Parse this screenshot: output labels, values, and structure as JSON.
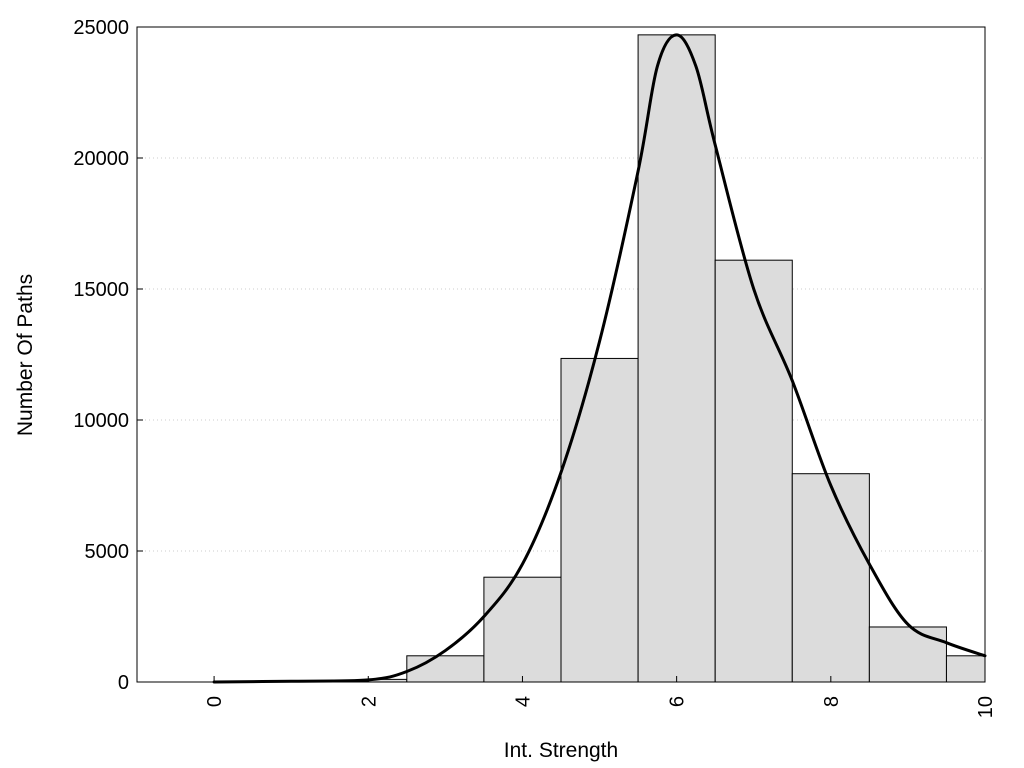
{
  "chart_data": {
    "type": "bar",
    "subtype": "histogram-with-density-curve",
    "title": "",
    "xlabel": "Int. Strength",
    "ylabel": "Number Of Paths",
    "xlim": [
      -1,
      10
    ],
    "ylim": [
      0,
      25000
    ],
    "xticks": [
      0,
      2,
      4,
      6,
      8,
      10
    ],
    "xtick_labels": [
      "0",
      "2",
      "4",
      "6",
      "8",
      "10"
    ],
    "xtick_label_rotation": "vertical",
    "yticks": [
      0,
      5000,
      10000,
      15000,
      20000,
      25000
    ],
    "ytick_labels": [
      "0",
      "5000",
      "10000",
      "15000",
      "20000",
      "25000"
    ],
    "grid": "horizontal dotted",
    "legend": "none",
    "bars": [
      {
        "x0": 0,
        "x1": 1,
        "value": 20
      },
      {
        "x0": 1,
        "x1": 2,
        "value": 40
      },
      {
        "x0": 2,
        "x1": 2.5,
        "value": 100
      },
      {
        "x0": 2.5,
        "x1": 3.5,
        "value": 1000
      },
      {
        "x0": 3.5,
        "x1": 4.5,
        "value": 4000
      },
      {
        "x0": 4.5,
        "x1": 5.5,
        "value": 12350
      },
      {
        "x0": 5.5,
        "x1": 6.5,
        "value": 24700
      },
      {
        "x0": 6.5,
        "x1": 7.5,
        "value": 16100
      },
      {
        "x0": 7.5,
        "x1": 8.5,
        "value": 7950
      },
      {
        "x0": 8.5,
        "x1": 9.5,
        "value": 2100
      },
      {
        "x0": 9.5,
        "x1": 10,
        "value": 1000
      }
    ],
    "curve": {
      "x": [
        0,
        1,
        2,
        2.5,
        3,
        3.5,
        4,
        4.5,
        5,
        5.5,
        5.75,
        6,
        6.25,
        6.5,
        7,
        7.5,
        8,
        8.5,
        9,
        9.5,
        10
      ],
      "y": [
        0,
        30,
        80,
        400,
        1200,
        2500,
        4500,
        8000,
        13000,
        19500,
        23500,
        24700,
        23500,
        20500,
        15000,
        11500,
        7500,
        4500,
        2200,
        1500,
        1000
      ]
    },
    "colors": {
      "bar_fill": "#dcdcdc",
      "bar_stroke": "#000000",
      "curve": "#000000",
      "grid": "#cccccc"
    }
  }
}
